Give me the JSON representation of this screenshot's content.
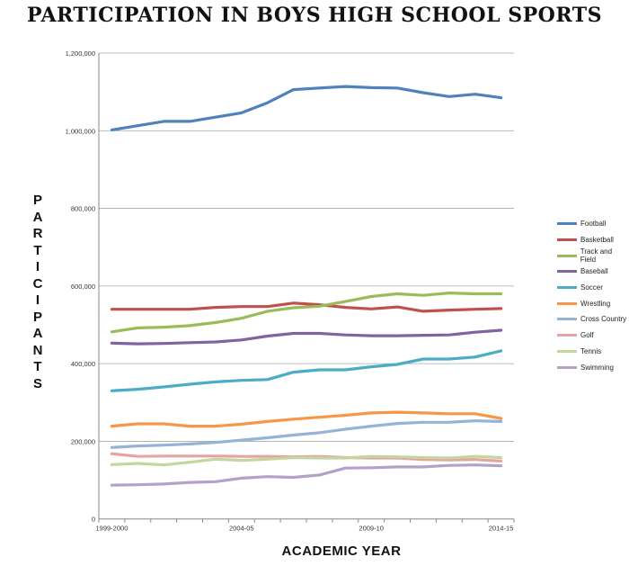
{
  "chart_data": {
    "type": "line",
    "title": "PARTICIPATION IN BOYS HIGH SCHOOL SPORTS",
    "xlabel": "ACADEMIC YEAR",
    "ylabel": "PARTICIPANTS",
    "ylim": [
      0,
      1200000
    ],
    "yticks": [
      "0",
      "200,000",
      "400,000",
      "600,000",
      "800,000",
      "1,000,000",
      "1,200,000"
    ],
    "ytick_values": [
      0,
      200000,
      400000,
      600000,
      800000,
      1000000,
      1200000
    ],
    "x_count": 16,
    "xtick_labels": [
      {
        "index": 0,
        "label": "1999-2000"
      },
      {
        "index": 5,
        "label": "2004-05"
      },
      {
        "index": 10,
        "label": "2009-10"
      },
      {
        "index": 15,
        "label": "2014-15"
      }
    ],
    "grid": true,
    "legend_position": "right",
    "series": [
      {
        "name": "Football",
        "color": "#4f81bd",
        "values": [
          1002000,
          1013000,
          1024000,
          1024000,
          1035000,
          1046000,
          1072000,
          1106000,
          1110000,
          1114000,
          1111000,
          1110000,
          1098000,
          1088000,
          1094000,
          1085000
        ]
      },
      {
        "name": "Basketball",
        "color": "#c0504d",
        "values": [
          540000,
          540000,
          540000,
          540000,
          545000,
          547000,
          547000,
          556000,
          552000,
          545000,
          541000,
          546000,
          535000,
          538000,
          540000,
          542000
        ]
      },
      {
        "name": "Track and Field",
        "color": "#9bbb59",
        "values": [
          482000,
          492000,
          494000,
          498000,
          506000,
          517000,
          535000,
          544000,
          548000,
          560000,
          573000,
          580000,
          576000,
          582000,
          580000,
          580000
        ]
      },
      {
        "name": "Baseball",
        "color": "#8064a2",
        "values": [
          453000,
          451000,
          452000,
          454000,
          456000,
          461000,
          471000,
          478000,
          478000,
          474000,
          472000,
          472000,
          473000,
          474000,
          481000,
          486000
        ]
      },
      {
        "name": "Soccer",
        "color": "#4bacc6",
        "values": [
          330000,
          334000,
          340000,
          347000,
          353000,
          357000,
          359000,
          378000,
          384000,
          384000,
          392000,
          398000,
          412000,
          412000,
          417000,
          433000
        ]
      },
      {
        "name": "Wrestling",
        "color": "#f79646",
        "values": [
          239000,
          245000,
          245000,
          239000,
          239000,
          244000,
          251000,
          257000,
          262000,
          267000,
          273000,
          275000,
          273000,
          271000,
          271000,
          259000
        ]
      },
      {
        "name": "Cross Country",
        "color": "#95b3d7",
        "values": [
          184000,
          188000,
          190000,
          193000,
          197000,
          203000,
          209000,
          216000,
          222000,
          231000,
          239000,
          246000,
          249000,
          249000,
          253000,
          251000
        ]
      },
      {
        "name": "Golf",
        "color": "#e6a3a2",
        "values": [
          168000,
          161000,
          162000,
          162000,
          162000,
          161000,
          161000,
          160000,
          161000,
          158000,
          157000,
          157000,
          153000,
          152000,
          153000,
          149000
        ]
      },
      {
        "name": "Tennis",
        "color": "#c3d69b",
        "values": [
          140000,
          143000,
          139000,
          146000,
          154000,
          151000,
          154000,
          158000,
          157000,
          157000,
          161000,
          160000,
          158000,
          157000,
          161000,
          158000
        ]
      },
      {
        "name": "Swimming",
        "color": "#b3a2c7",
        "values": [
          87000,
          88000,
          90000,
          94000,
          96000,
          105000,
          109000,
          107000,
          113000,
          131000,
          132000,
          134000,
          134000,
          138000,
          139000,
          137000
        ]
      }
    ]
  }
}
